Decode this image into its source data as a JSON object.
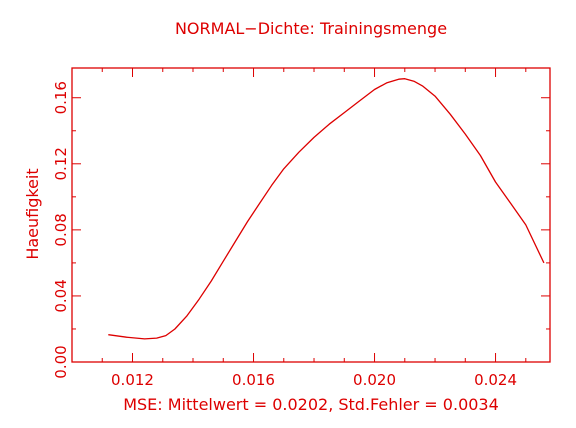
{
  "colors": {
    "plot": "#dd0000",
    "background": "#ffffff"
  },
  "chart_data": {
    "type": "line",
    "title": "NORMAL−Dichte: Trainingsmenge",
    "xlabel": "MSE: Mittelwert = 0.0202, Std.Fehler = 0.0034",
    "ylabel": "Haeufigkeit",
    "xlim": [
      0.01,
      0.0258
    ],
    "ylim": [
      0.0,
      0.178
    ],
    "x_ticks": [
      0.012,
      0.016,
      0.02,
      0.024
    ],
    "x_tick_labels": [
      "0.012",
      "0.016",
      "0.020",
      "0.024"
    ],
    "y_ticks": [
      0.0,
      0.04,
      0.08,
      0.12,
      0.16
    ],
    "y_tick_labels": [
      "0.00",
      "0.04",
      "0.08",
      "0.12",
      "0.16"
    ],
    "grid": false,
    "series": [
      {
        "x": [
          0.0112,
          0.0118,
          0.0124,
          0.0128,
          0.0131,
          0.0134,
          0.0138,
          0.0142,
          0.0146,
          0.015,
          0.0154,
          0.0158,
          0.0162,
          0.0166,
          0.017,
          0.0175,
          0.018,
          0.0185,
          0.019,
          0.0195,
          0.02,
          0.0204,
          0.0208,
          0.021,
          0.0213,
          0.0216,
          0.022,
          0.0225,
          0.023,
          0.0235,
          0.024,
          0.0245,
          0.025,
          0.0256
        ],
        "y": [
          0.0165,
          0.015,
          0.014,
          0.0145,
          0.016,
          0.02,
          0.028,
          0.038,
          0.049,
          0.061,
          0.073,
          0.085,
          0.096,
          0.107,
          0.117,
          0.127,
          0.136,
          0.144,
          0.151,
          0.158,
          0.165,
          0.169,
          0.1712,
          0.1715,
          0.17,
          0.167,
          0.161,
          0.15,
          0.138,
          0.125,
          0.109,
          0.096,
          0.083,
          0.06
        ]
      }
    ]
  }
}
